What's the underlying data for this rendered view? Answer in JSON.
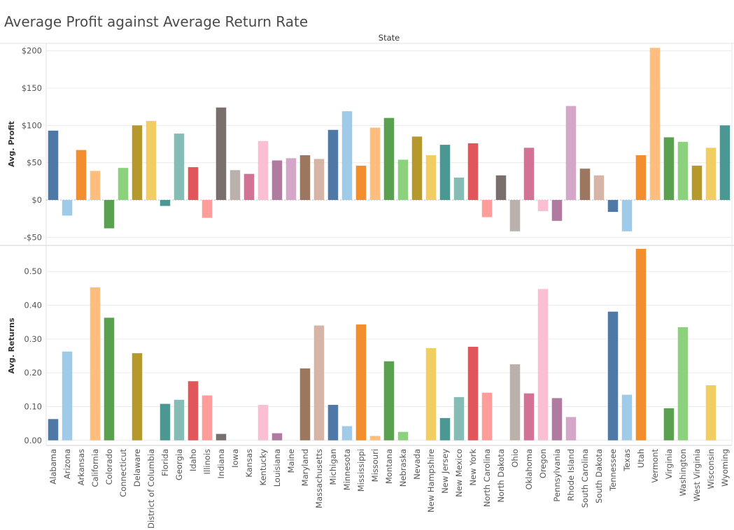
{
  "chart_data": {
    "type": "bar",
    "title": "Average Profit against Average Return Rate",
    "column_header": "State",
    "categories": [
      "Alabama",
      "Arizona",
      "Arkansas",
      "California",
      "Colorado",
      "Connecticut",
      "Delaware",
      "District of Columbia",
      "Florida",
      "Georgia",
      "Idaho",
      "Illinois",
      "Indiana",
      "Iowa",
      "Kansas",
      "Kentucky",
      "Louisiana",
      "Maine",
      "Maryland",
      "Massachusetts",
      "Michigan",
      "Minnesota",
      "Mississippi",
      "Missouri",
      "Montana",
      "Nebraska",
      "Nevada",
      "New Hampshire",
      "New Jersey",
      "New Mexico",
      "New York",
      "North Carolina",
      "North Dakota",
      "Ohio",
      "Oklahoma",
      "Oregon",
      "Pennsylvania",
      "Rhode Island",
      "South Carolina",
      "South Dakota",
      "Tennessee",
      "Texas",
      "Utah",
      "Vermont",
      "Virginia",
      "Washington",
      "West Virginia",
      "Wisconsin",
      "Wyoming"
    ],
    "colors": [
      "#4e79a7",
      "#a0cbe8",
      "#f28e2b",
      "#ffbe7d",
      "#59a14f",
      "#8cd17d",
      "#b6992d",
      "#f1ce63",
      "#499894",
      "#86bcb6",
      "#e15759",
      "#ff9d9a",
      "#79706e",
      "#bab0ac",
      "#d37295",
      "#fabfd2",
      "#b07aa1",
      "#d4a6c8",
      "#9d7660",
      "#d7b5a6",
      "#4e79a7",
      "#a0cbe8",
      "#f28e2b",
      "#ffbe7d",
      "#59a14f",
      "#8cd17d",
      "#b6992d",
      "#f1ce63",
      "#499894",
      "#86bcb6",
      "#e15759",
      "#ff9d9a",
      "#79706e",
      "#bab0ac",
      "#d37295",
      "#fabfd2",
      "#b07aa1",
      "#d4a6c8",
      "#9d7660",
      "#d7b5a6",
      "#4e79a7",
      "#a0cbe8",
      "#f28e2b",
      "#ffbe7d",
      "#59a14f",
      "#8cd17d",
      "#b6992d",
      "#f1ce63",
      "#499894"
    ],
    "panels": [
      {
        "ylabel": "Avg. Profit",
        "ylim": [
          -60,
          210
        ],
        "ticks": [
          200,
          150,
          100,
          50,
          0,
          -50
        ],
        "tick_labels": [
          "$200",
          "$150",
          "$100",
          "$50",
          "$0",
          "-$50"
        ],
        "values": [
          93,
          -21,
          67,
          39,
          -38,
          43,
          100,
          106,
          -8,
          89,
          44,
          -24,
          124,
          40,
          35,
          79,
          53,
          56,
          60,
          55,
          94,
          119,
          46,
          97,
          110,
          54,
          85,
          60,
          74,
          30,
          76,
          -23,
          33,
          -42,
          70,
          -15,
          -28,
          126,
          42,
          33,
          -16,
          -42,
          60,
          204,
          84,
          78,
          46,
          70,
          100
        ]
      },
      {
        "ylabel": "Avg. Returns",
        "ylim": [
          -0.015,
          0.575
        ],
        "ticks": [
          0.5,
          0.4,
          0.3,
          0.2,
          0.1,
          0.0
        ],
        "tick_labels": [
          "0.50",
          "0.40",
          "0.30",
          "0.20",
          "0.10",
          "0.00"
        ],
        "values": [
          0.063,
          0.263,
          0,
          0.453,
          0.363,
          0,
          0.258,
          0,
          0.108,
          0.12,
          0.175,
          0.133,
          0.019,
          0,
          0,
          0.105,
          0.021,
          0,
          0.213,
          0.34,
          0.105,
          0.042,
          0.343,
          0.013,
          0.234,
          0.025,
          0,
          0.273,
          0.066,
          0.128,
          0.277,
          0.141,
          0,
          0.225,
          0.139,
          0.448,
          0.125,
          0.069,
          0,
          0,
          0.381,
          0.135,
          0.567,
          0,
          0.095,
          0.335,
          0,
          0.163,
          0
        ]
      }
    ],
    "grid": true,
    "legend": "none"
  }
}
